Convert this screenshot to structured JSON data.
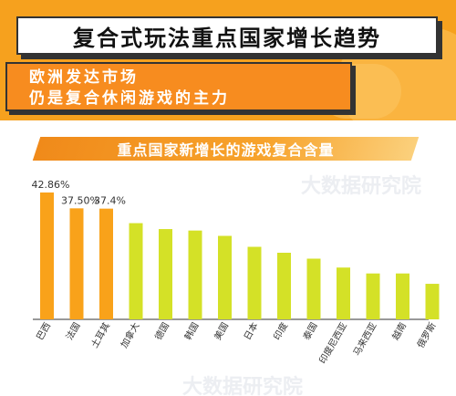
{
  "header": {
    "title": "复合式玩法重点国家增长趋势",
    "subtitle_lines": [
      "欧洲发达市场",
      "仍是复合休闲游戏的主力"
    ]
  },
  "watermark": "大数据研究院",
  "chart_data": {
    "type": "bar",
    "title": "重点国家新增长的游戏复合含量",
    "xlabel": "",
    "ylabel": "",
    "categories": [
      "巴西",
      "法国",
      "土耳其",
      "加拿大",
      "德国",
      "韩国",
      "美国",
      "日本",
      "印度",
      "泰国",
      "印度尼西亚",
      "马来西亚",
      "越南",
      "俄罗斯"
    ],
    "values": [
      42.86,
      37.5,
      37.4,
      32.5,
      30.5,
      30.0,
      28.2,
      24.5,
      22.5,
      20.5,
      17.5,
      15.5,
      15.5,
      12.0
    ],
    "data_labels": [
      "42.86%",
      "37.50%",
      "37.4%",
      "",
      "",
      "",
      "",
      "",
      "",
      "",
      "",
      "",
      "",
      ""
    ],
    "ylim": [
      0,
      45
    ],
    "grid": false,
    "legend": "none",
    "colors": {
      "highlight": "#f9a21a",
      "normal": "#d4e127",
      "axis": "#333333",
      "label": "#333333"
    },
    "highlight_count": 3
  }
}
